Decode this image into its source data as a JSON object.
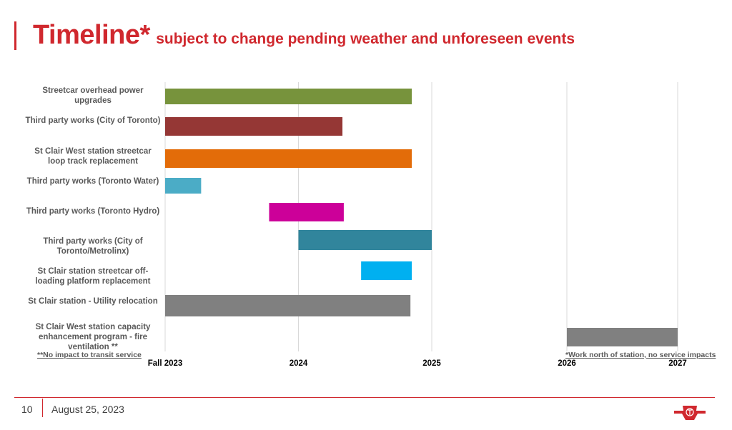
{
  "header": {
    "title": "Timeline*",
    "subtitle": "subject to change pending weather and unforeseen events"
  },
  "footer": {
    "page_number": "10",
    "date": "August 25, 2023",
    "logo": "ttc-logo-icon"
  },
  "colors": {
    "accent": "#d0282e",
    "gridline": "#d9d9d9"
  },
  "chart_data": {
    "type": "bar",
    "orientation": "horizontal-gantt",
    "title": "Timeline* subject to change pending weather and unforeseen events",
    "xlabel": "",
    "ylabel": "",
    "grid": true,
    "x_scale_note": "periods: 0 = Fall 2023, 1 = 2024, 2 = 2025 (left panel); 2026–2027 (right panel)",
    "panels": [
      {
        "name": "main",
        "xlim": [
          0,
          2
        ],
        "tick_values": [
          0,
          1,
          2
        ],
        "tick_labels": [
          "Fall 2023",
          "2024",
          "2025"
        ]
      },
      {
        "name": "future",
        "xlim": [
          2026,
          2027
        ],
        "tick_values": [
          2026,
          2027
        ],
        "tick_labels": [
          "2026",
          "2027"
        ]
      }
    ],
    "categories": [
      "Streetcar overhead power upgrades",
      "Third party works (City of Toronto)",
      "St Clair West station streetcar loop track replacement",
      "Third party works (Toronto Water)",
      "Third party works (Toronto Hydro)",
      "Third party works (City of Toronto/Metrolinx)",
      "St Clair station streetcar off-loading platform replacement",
      "St Clair station - Utility relocation",
      "St Clair West station capacity enhancement program - fire ventilation **"
    ],
    "series": [
      {
        "name": "Streetcar overhead power upgrades",
        "panel": "main",
        "start": 0,
        "end": 1.85,
        "color": "#77933c"
      },
      {
        "name": "Third party works (City of Toronto)",
        "panel": "main",
        "start": 0,
        "end": 1.33,
        "color": "#953735"
      },
      {
        "name": "St Clair West station streetcar loop track replacement",
        "panel": "main",
        "start": 0,
        "end": 1.85,
        "color": "#e36c09"
      },
      {
        "name": "Third party works (Toronto Water)",
        "panel": "main",
        "start": 0,
        "end": 0.27,
        "color": "#4bacc6"
      },
      {
        "name": "Third party works (Toronto Hydro)",
        "panel": "main",
        "start": 0.78,
        "end": 1.34,
        "color": "#cc0099"
      },
      {
        "name": "Third party works (City of Toronto/Metrolinx)",
        "panel": "main",
        "start": 1.0,
        "end": 2.0,
        "color": "#31859c"
      },
      {
        "name": "St Clair station streetcar off-loading platform replacement",
        "panel": "main",
        "start": 1.47,
        "end": 1.85,
        "color": "#00b0f0"
      },
      {
        "name": "St Clair station - Utility relocation",
        "panel": "main",
        "start": 0,
        "end": 1.84,
        "color": "#808080"
      },
      {
        "name": "St Clair West station capacity enhancement program - fire ventilation **",
        "panel": "future",
        "start": 2026,
        "end": 2027,
        "color": "#808080"
      }
    ],
    "annotations": [
      "**No impact to transit service",
      "*Work north of station, no service impacts"
    ]
  }
}
